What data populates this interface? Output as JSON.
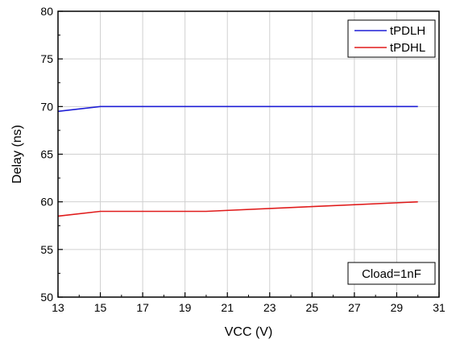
{
  "chart_data": {
    "type": "line",
    "title": "",
    "xlabel": "VCC (V)",
    "ylabel": "Delay (ns)",
    "xlim": [
      13,
      31
    ],
    "ylim": [
      50,
      80
    ],
    "xticks": [
      13,
      15,
      17,
      19,
      21,
      23,
      25,
      27,
      29,
      31
    ],
    "yticks": [
      50,
      55,
      60,
      65,
      70,
      75,
      80
    ],
    "grid": true,
    "legend_position": "top-right",
    "series": [
      {
        "name": "tPDLH",
        "color": "#1f1fd6",
        "x": [
          13,
          15,
          20,
          25,
          30
        ],
        "y": [
          69.5,
          70,
          70,
          70,
          70
        ]
      },
      {
        "name": "tPDHL",
        "color": "#e01b1b",
        "x": [
          13,
          15,
          20,
          25,
          30
        ],
        "y": [
          58.5,
          59,
          59,
          59.5,
          60
        ]
      }
    ],
    "annotation": "Cload=1nF"
  }
}
